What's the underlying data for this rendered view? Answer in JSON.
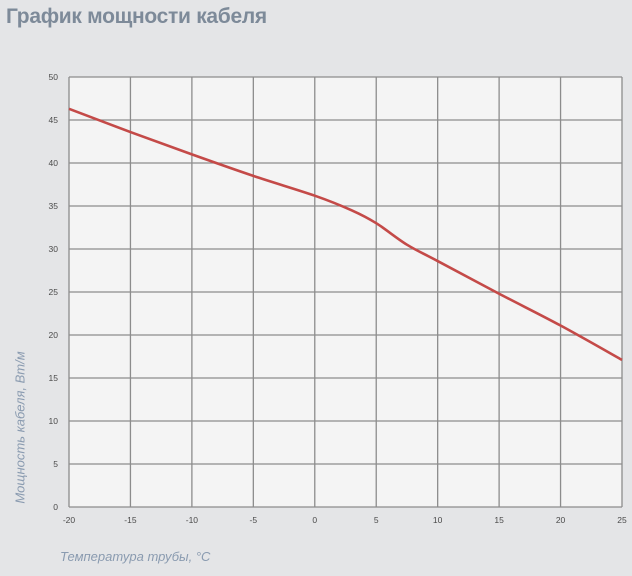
{
  "chart_data": {
    "type": "line",
    "title": "График мощности кабеля",
    "xlabel": "Температура трубы, °С",
    "ylabel": "Мощность кабеля, Вт/м",
    "xlim": [
      -20,
      25
    ],
    "ylim": [
      0,
      50
    ],
    "xticks": [
      -20,
      -15,
      -10,
      -5,
      0,
      5,
      10,
      15,
      20,
      25
    ],
    "yticks": [
      0,
      5,
      10,
      15,
      20,
      25,
      30,
      35,
      40,
      45,
      50
    ],
    "grid": true,
    "series": [
      {
        "color": "#c44a48",
        "x": [
          -20,
          -15,
          -10,
          -5,
          0,
          3,
          5,
          7.5,
          10,
          15,
          20,
          25
        ],
        "y": [
          46.3,
          43.6,
          41.0,
          38.5,
          36.2,
          34.5,
          33.0,
          30.5,
          28.6,
          24.8,
          21.1,
          17.1
        ]
      }
    ]
  }
}
